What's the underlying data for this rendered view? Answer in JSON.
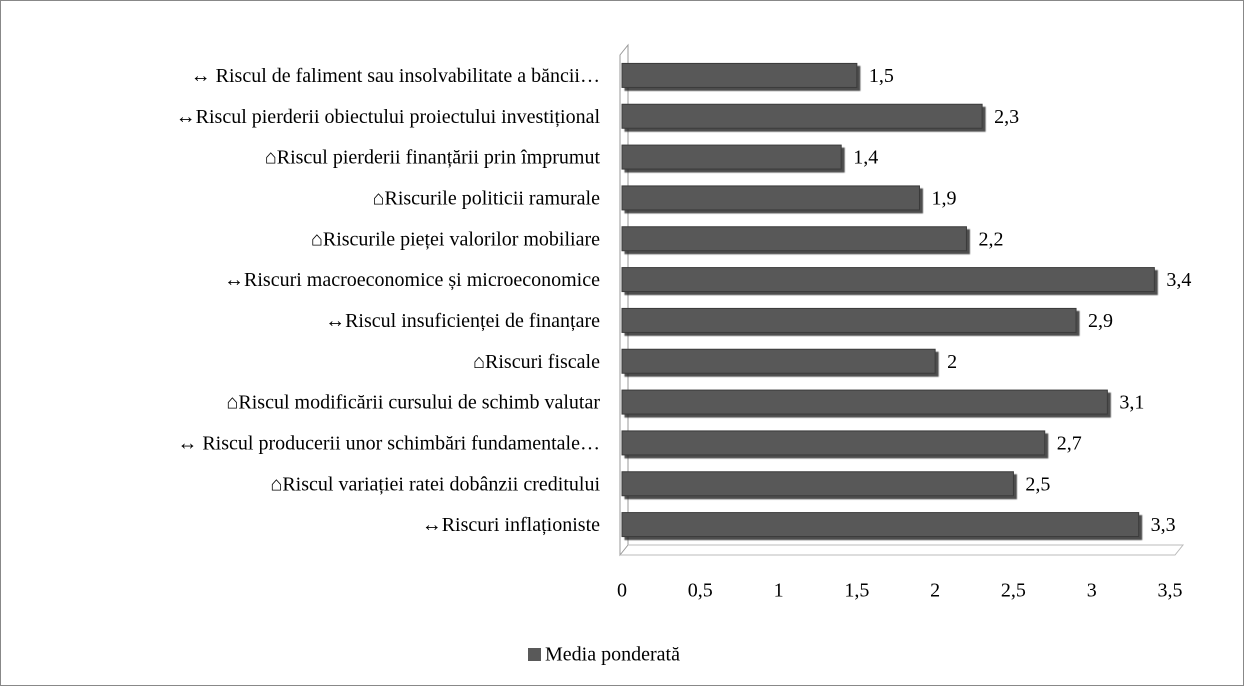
{
  "chart_data": {
    "type": "bar",
    "orientation": "horizontal",
    "categories": [
      "↔ Riscul de faliment sau insolvabilitate a băncii…",
      "↔Riscul pierderii obiectului proiectului investițional",
      "⌂Riscul pierderii finanțării prin împrumut",
      "⌂Riscurile politicii ramurale",
      "⌂Riscurile pieței valorilor mobiliare",
      "↔Riscuri macroeconomice și microeconomice",
      "↔Riscul insuficienței de finanțare",
      "⌂Riscuri fiscale",
      "⌂Riscul modificării cursului de schimb valutar",
      "↔  Riscul producerii unor schimbări fundamentale…",
      "⌂Riscul variației ratei dobânzii creditului",
      "↔Riscuri inflaționiste"
    ],
    "series": [
      {
        "name": "Media ponderată",
        "color": "#595959",
        "values": [
          1.5,
          2.3,
          1.4,
          1.9,
          2.2,
          3.4,
          2.9,
          2,
          3.1,
          2.7,
          2.5,
          3.3
        ],
        "value_labels": [
          "1,5",
          "2,3",
          "1,4",
          "1,9",
          "2,2",
          "3,4",
          "2,9",
          "2",
          "3,1",
          "2,7",
          "2,5",
          "3,3"
        ]
      }
    ],
    "xlim": [
      0,
      3.5
    ],
    "xticks": [
      0,
      {
        "value": 0.5,
        "label": "0,5"
      },
      1,
      {
        "value": 1.5,
        "label": "1,5"
      },
      2,
      {
        "value": 2.5,
        "label": "2,5"
      },
      3,
      {
        "value": 3.5,
        "label": "3,5"
      }
    ],
    "legend": "bottom"
  }
}
